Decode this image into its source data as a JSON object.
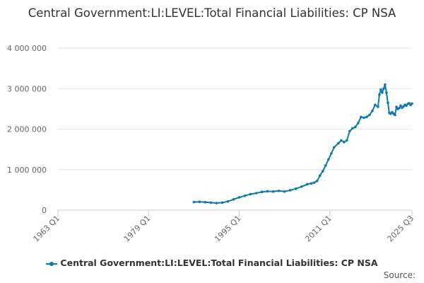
{
  "chart_data": {
    "type": "line",
    "title": "Central Government:LI:LEVEL:Total Financial Liabilities: CP NSA",
    "xlabel": "",
    "ylabel": "",
    "x_tick_labels": [
      "1963 Q1",
      "1979 Q1",
      "1995 Q1",
      "2011 Q1",
      "2025 Q3"
    ],
    "y_tick_labels": [
      "0",
      "1 000 000",
      "2 000 000",
      "3 000 000",
      "4 000 000"
    ],
    "y_ticks": [
      0,
      1000000,
      2000000,
      3000000,
      4000000
    ],
    "ylim": [
      0,
      4000000
    ],
    "x_range": [
      1963.0,
      2025.5
    ],
    "legend_position": "bottom",
    "grid": true,
    "series": [
      {
        "name": "Central Government:LI:LEVEL:Total Financial Liabilities: CP NSA",
        "color": "#0f79a9",
        "x": [
          1987.0,
          1988.0,
          1989.0,
          1990.0,
          1991.0,
          1992.0,
          1993.0,
          1994.0,
          1995.0,
          1996.0,
          1997.0,
          1998.0,
          1999.0,
          2000.0,
          2001.0,
          2002.0,
          2003.0,
          2004.0,
          2005.0,
          2006.0,
          2007.0,
          2007.75,
          2008.25,
          2008.75,
          2009.25,
          2009.75,
          2010.25,
          2010.75,
          2011.25,
          2011.75,
          2012.5,
          2013.0,
          2013.5,
          2014.0,
          2014.5,
          2015.0,
          2015.5,
          2016.0,
          2016.5,
          2017.0,
          2017.5,
          2018.0,
          2018.5,
          2019.0,
          2019.5,
          2019.75,
          2020.0,
          2020.25,
          2020.5,
          2020.75,
          2021.0,
          2021.25,
          2021.5,
          2021.75,
          2022.0,
          2022.25,
          2022.5,
          2022.75,
          2023.0,
          2023.25,
          2023.5,
          2023.75,
          2024.0,
          2024.25,
          2024.5,
          2024.75,
          2025.0,
          2025.25,
          2025.5
        ],
        "values": [
          200000,
          205000,
          195000,
          185000,
          175000,
          185000,
          215000,
          265000,
          315000,
          355000,
          395000,
          420000,
          450000,
          465000,
          460000,
          475000,
          460000,
          490000,
          530000,
          580000,
          640000,
          660000,
          680000,
          720000,
          850000,
          960000,
          1100000,
          1250000,
          1400000,
          1550000,
          1650000,
          1720000,
          1680000,
          1720000,
          1950000,
          2020000,
          2050000,
          2150000,
          2300000,
          2280000,
          2300000,
          2350000,
          2450000,
          2600000,
          2550000,
          2850000,
          2980000,
          2900000,
          3000000,
          3100000,
          2900000,
          2650000,
          2400000,
          2380000,
          2420000,
          2380000,
          2350000,
          2550000,
          2500000,
          2520000,
          2580000,
          2530000,
          2560000,
          2600000,
          2580000,
          2620000,
          2640000,
          2600000,
          2630000
        ]
      }
    ]
  },
  "legend": {
    "label": "Central Government:LI:LEVEL:Total Financial Liabilities: CP NSA"
  },
  "source": {
    "label": "Source:"
  }
}
